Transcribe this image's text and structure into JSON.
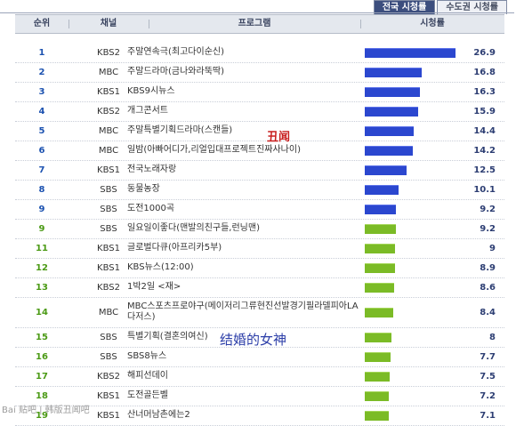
{
  "tabs": [
    "전국 시청률",
    "수도권 시청률"
  ],
  "headers": {
    "rank": "순위",
    "channel": "채널",
    "program": "프로그램",
    "rating": "시청률"
  },
  "rows": [
    {
      "rank": "1",
      "channel": "KBS2",
      "program": "주말연속극(최고다이순신)",
      "value": 26.9,
      "label": "26.9",
      "color": "blue"
    },
    {
      "rank": "2",
      "channel": "MBC",
      "program": "주말드라마(금나와라뚝딱)",
      "value": 16.8,
      "label": "16.8",
      "color": "blue"
    },
    {
      "rank": "3",
      "channel": "KBS1",
      "program": "KBS9시뉴스",
      "value": 16.3,
      "label": "16.3",
      "color": "blue"
    },
    {
      "rank": "4",
      "channel": "KBS2",
      "program": "개그콘서트",
      "value": 15.9,
      "label": "15.9",
      "color": "blue"
    },
    {
      "rank": "5",
      "channel": "MBC",
      "program": "주말특별기획드라마(스캔들)",
      "value": 14.4,
      "label": "14.4",
      "color": "blue"
    },
    {
      "rank": "6",
      "channel": "MBC",
      "program": "일밤(아빠어디가,리얼입대프로젝트진짜사나이)",
      "value": 14.2,
      "label": "14.2",
      "color": "blue"
    },
    {
      "rank": "7",
      "channel": "KBS1",
      "program": "전국노래자랑",
      "value": 12.5,
      "label": "12.5",
      "color": "blue"
    },
    {
      "rank": "8",
      "channel": "SBS",
      "program": "동물농장",
      "value": 10.1,
      "label": "10.1",
      "color": "blue"
    },
    {
      "rank": "9",
      "channel": "SBS",
      "program": "도전1000곡",
      "value": 9.2,
      "label": "9.2",
      "color": "blue"
    },
    {
      "rank": "9",
      "channel": "SBS",
      "program": "일요일이좋다(맨발의친구들,런닝맨)",
      "value": 9.2,
      "label": "9.2",
      "color": "green"
    },
    {
      "rank": "11",
      "channel": "KBS1",
      "program": "글로벌다큐(아프리카5부)",
      "value": 9,
      "label": "9",
      "color": "green"
    },
    {
      "rank": "12",
      "channel": "KBS1",
      "program": "KBS뉴스(12:00)",
      "value": 8.9,
      "label": "8.9",
      "color": "green"
    },
    {
      "rank": "13",
      "channel": "KBS2",
      "program": "1박2일 <재>",
      "value": 8.6,
      "label": "8.6",
      "color": "green"
    },
    {
      "rank": "14",
      "channel": "MBC",
      "program": "MBC스포츠프로야구(메이저리그류현진선발경기필라델피아LA다저스)",
      "value": 8.4,
      "label": "8.4",
      "color": "green"
    },
    {
      "rank": "15",
      "channel": "SBS",
      "program": "특별기획(결혼의여신)",
      "value": 8,
      "label": "8",
      "color": "green"
    },
    {
      "rank": "16",
      "channel": "SBS",
      "program": "SBS8뉴스",
      "value": 7.7,
      "label": "7.7",
      "color": "green"
    },
    {
      "rank": "17",
      "channel": "KBS2",
      "program": "해피선데이",
      "value": 7.5,
      "label": "7.5",
      "color": "green"
    },
    {
      "rank": "18",
      "channel": "KBS1",
      "program": "도전골든벨",
      "value": 7.2,
      "label": "7.2",
      "color": "green"
    },
    {
      "rank": "19",
      "channel": "KBS1",
      "program": "산너머남촌에는2",
      "value": 7.1,
      "label": "7.1",
      "color": "green"
    }
  ],
  "annotations": {
    "scandal": "丑闻",
    "goddess": "结婚的女神"
  },
  "watermark": "Bai 贴吧 | 韩版丑闻吧",
  "colors": {
    "blue_bar": "#2b47cf",
    "green_bar": "#7bbb26",
    "header_tab": "#3c4e7e"
  }
}
